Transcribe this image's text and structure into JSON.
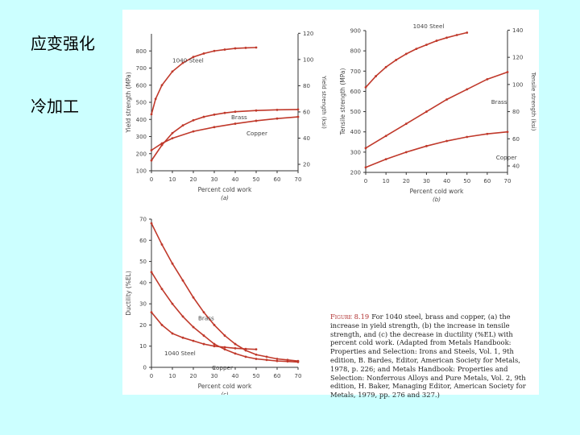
{
  "sidebar": {
    "title": "应变强化",
    "subtitle": "冷加工"
  },
  "figure": {
    "caption_number": "Figure 8.19",
    "caption_text": "For 1040 steel, brass and copper, (a) the increase in yield strength, (b) the increase in tensile strength, and (c) the decrease in ductility (%EL) with percent cold work. (Adapted from Metals Handbook: Properties and Selection: Irons and Steels, Vol. 1, 9th edition, B. Bardes, Editor, American Society for Metals, 1978, p. 226; and Metals Handbook: Properties and Selection: Nonferrous Alloys and Pure Metals, Vol. 2, 9th edition, H. Baker, Managing Editor, American Society for Metals, 1979, pp. 276 and 327.)"
  },
  "chart_data": [
    {
      "id": "a",
      "type": "line",
      "panel_label": "(a)",
      "xlabel": "Percent cold work",
      "ylabel": "Yield strength (MPa)",
      "ylabel_right": "Yield strength (ksi)",
      "xlim": [
        0,
        70
      ],
      "ylim": [
        100,
        900
      ],
      "xticks": [
        "0",
        "10",
        "20",
        "30",
        "40",
        "50",
        "60",
        "70"
      ],
      "yticks": [
        "100",
        "200",
        "300",
        "400",
        "500",
        "600",
        "700",
        "800"
      ],
      "yticks_right": [
        "20",
        "40",
        "60",
        "80",
        "100",
        "120"
      ],
      "series": [
        {
          "name": "1040 Steel",
          "x": [
            0,
            2,
            5,
            10,
            15,
            20,
            25,
            30,
            35,
            40,
            45,
            50
          ],
          "y": [
            430,
            520,
            600,
            680,
            730,
            765,
            785,
            800,
            808,
            815,
            818,
            820
          ]
        },
        {
          "name": "Brass",
          "x": [
            0,
            5,
            10,
            15,
            20,
            25,
            30,
            35,
            40,
            50,
            60,
            70
          ],
          "y": [
            160,
            250,
            320,
            365,
            395,
            415,
            428,
            438,
            445,
            452,
            456,
            458
          ]
        },
        {
          "name": "Copper",
          "x": [
            0,
            5,
            10,
            20,
            30,
            40,
            50,
            60,
            70
          ],
          "y": [
            220,
            260,
            290,
            330,
            355,
            375,
            392,
            405,
            415
          ]
        }
      ]
    },
    {
      "id": "b",
      "type": "line",
      "panel_label": "(b)",
      "xlabel": "Percent cold work",
      "ylabel": "Tensile strength (MPa)",
      "ylabel_right": "Tensile strength (ksi)",
      "xlim": [
        0,
        70
      ],
      "ylim": [
        200,
        900
      ],
      "xticks": [
        "0",
        "10",
        "20",
        "30",
        "40",
        "50",
        "60",
        "70"
      ],
      "yticks": [
        "200",
        "300",
        "400",
        "500",
        "600",
        "700",
        "800",
        "900"
      ],
      "yticks_right": [
        "40",
        "60",
        "80",
        "100",
        "120",
        "140"
      ],
      "series": [
        {
          "name": "1040 Steel",
          "x": [
            0,
            5,
            10,
            15,
            20,
            25,
            30,
            35,
            40,
            45,
            50
          ],
          "y": [
            620,
            675,
            720,
            755,
            785,
            810,
            830,
            850,
            865,
            878,
            890
          ]
        },
        {
          "name": "Brass",
          "x": [
            0,
            10,
            20,
            30,
            40,
            50,
            60,
            70
          ],
          "y": [
            320,
            380,
            440,
            500,
            560,
            610,
            660,
            695
          ]
        },
        {
          "name": "Copper",
          "x": [
            0,
            10,
            20,
            30,
            40,
            50,
            60,
            70
          ],
          "y": [
            225,
            265,
            300,
            330,
            355,
            375,
            390,
            400
          ]
        }
      ]
    },
    {
      "id": "c",
      "type": "line",
      "panel_label": "(c)",
      "xlabel": "Percent cold work",
      "ylabel": "Ductility (%EL)",
      "xlim": [
        0,
        70
      ],
      "ylim": [
        0,
        70
      ],
      "xticks": [
        "0",
        "10",
        "20",
        "30",
        "40",
        "50",
        "60",
        "70"
      ],
      "yticks": [
        "0",
        "10",
        "20",
        "30",
        "40",
        "50",
        "60",
        "70"
      ],
      "series": [
        {
          "name": "1040 Steel",
          "x": [
            0,
            5,
            10,
            15,
            20,
            25,
            30,
            35,
            40,
            45,
            50
          ],
          "y": [
            26,
            20,
            16,
            14,
            12.5,
            11,
            10,
            9.5,
            9,
            8.7,
            8.5
          ]
        },
        {
          "name": "Brass",
          "x": [
            0,
            5,
            10,
            15,
            20,
            25,
            30,
            35,
            40,
            45,
            50,
            55,
            60,
            65,
            70
          ],
          "y": [
            68,
            58,
            49,
            41,
            33,
            26,
            20,
            15,
            11,
            8,
            6,
            5,
            4,
            3.5,
            3
          ]
        },
        {
          "name": "Copper",
          "x": [
            0,
            5,
            10,
            15,
            20,
            25,
            30,
            35,
            40,
            45,
            50,
            55,
            60,
            65,
            70
          ],
          "y": [
            45,
            37,
            30,
            24,
            19,
            15,
            11,
            8.5,
            6.5,
            5,
            4,
            3.5,
            3,
            2.8,
            2.5
          ]
        }
      ]
    }
  ]
}
